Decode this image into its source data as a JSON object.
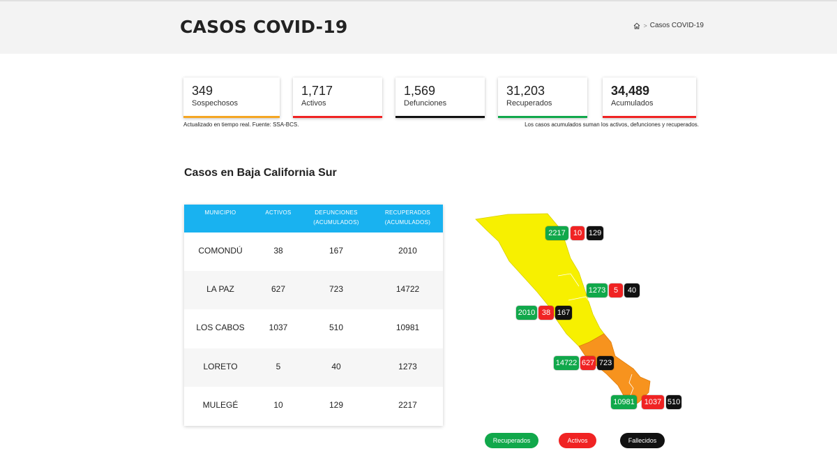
{
  "header": {
    "title": "CASOS COVID-19",
    "breadcrumb_current": "Casos COVID-19",
    "home_icon": "home-icon"
  },
  "stats": [
    {
      "value": "349",
      "label": "Sospechosos",
      "color": "#f5a623"
    },
    {
      "value": "1,717",
      "label": "Activos",
      "color": "#f02323"
    },
    {
      "value": "1,569",
      "label": "Defunciones",
      "color": "#111111"
    },
    {
      "value": "31,203",
      "label": "Recuperados",
      "color": "#11a84b"
    },
    {
      "value": "34,489",
      "label": "Acumulados",
      "color": "#f02323"
    }
  ],
  "notes": {
    "left": "Actualizado en tiempo real. Fuente: SSA-BCS.",
    "right": "Los casos acumulados suman los activos, defunciones y recuperados."
  },
  "section_title": "Casos en Baja California Sur",
  "table": {
    "headers": {
      "municipio": "MUNICIPIO",
      "activos": "ACTIVOS",
      "defunciones_1": "DEFUNCIONES",
      "defunciones_2": "(ACUMULADOS)",
      "recuperados_1": "RECUPERADOS",
      "recuperados_2": "(ACUMULADOS)"
    },
    "header_color": "#19b2f0",
    "rows": [
      {
        "municipio": "COMONDÚ",
        "activos": "38",
        "defunciones": "167",
        "recuperados": "2010"
      },
      {
        "municipio": "LA PAZ",
        "activos": "627",
        "defunciones": "723",
        "recuperados": "14722"
      },
      {
        "municipio": "LOS CABOS",
        "activos": "1037",
        "defunciones": "510",
        "recuperados": "10981"
      },
      {
        "municipio": "LORETO",
        "activos": "5",
        "defunciones": "40",
        "recuperados": "1273"
      },
      {
        "municipio": "MULEGÉ",
        "activos": "10",
        "defunciones": "129",
        "recuperados": "2217"
      }
    ]
  },
  "map": {
    "colors": {
      "yellow": "#f7f000",
      "orange": "#f7931e",
      "recuperados": "#11a84b",
      "activos": "#f02323",
      "fallecidos": "#111111"
    },
    "labels": {
      "mulege": {
        "rec": "2217",
        "act": "10",
        "fal": "129"
      },
      "loreto": {
        "rec": "1273",
        "act": "5",
        "fal": "40"
      },
      "comondu": {
        "rec": "2010",
        "act": "38",
        "fal": "167"
      },
      "lapaz": {
        "rec": "14722",
        "act": "627",
        "fal": "723"
      },
      "loscabos": {
        "rec": "10981",
        "act": "1037",
        "fal": "510"
      }
    }
  },
  "legend": {
    "recuperados": "Recuperados",
    "activos": "Activos",
    "fallecidos": "Fallecidos"
  }
}
